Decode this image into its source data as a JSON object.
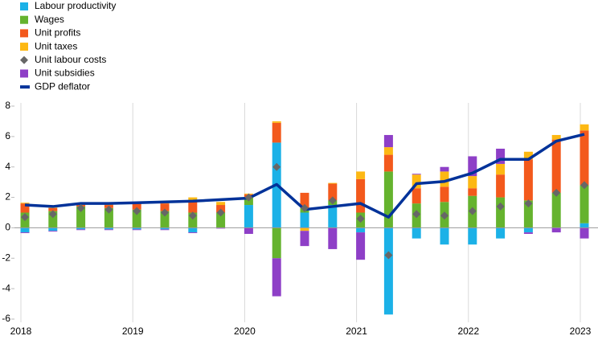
{
  "chart_data": {
    "type": "bar",
    "stacked": true,
    "categories": [
      "2018",
      null,
      null,
      null,
      "2019",
      null,
      null,
      null,
      "2020",
      null,
      null,
      null,
      "2021",
      null,
      null,
      null,
      "2022",
      null,
      null,
      null,
      "2023"
    ],
    "ylim": [
      -6,
      8
    ],
    "yticks": [
      -6,
      -4,
      -2,
      0,
      2,
      4,
      6,
      8
    ],
    "grid": "x",
    "legend": "top-left",
    "series": [
      {
        "name": "Labour productivity",
        "type": "bar",
        "color": "#1bb1e7",
        "values": [
          -0.3,
          -0.2,
          -0.1,
          -0.1,
          -0.1,
          -0.1,
          -0.3,
          0,
          1.5,
          5.6,
          1.0,
          1.5,
          -0.3,
          -5.7,
          -0.7,
          -1.1,
          -1.1,
          -0.7,
          -0.3,
          0,
          0.3
        ]
      },
      {
        "name": "Wages",
        "type": "bar",
        "color": "#65b32e",
        "values": [
          1.0,
          1.1,
          1.4,
          1.3,
          1.2,
          1.1,
          1.0,
          1.0,
          0.5,
          -2.0,
          0.3,
          0.3,
          1.0,
          3.7,
          1.6,
          1.7,
          2.1,
          2.0,
          1.8,
          2.3,
          2.5
        ]
      },
      {
        "name": "Unit profits",
        "type": "bar",
        "color": "#f3591c",
        "values": [
          0.6,
          0.2,
          0.1,
          0.2,
          0.4,
          0.5,
          0.8,
          0.5,
          0.2,
          1.3,
          1.0,
          1.1,
          2.2,
          1.1,
          1.0,
          1.0,
          0.5,
          1.5,
          2.7,
          3.5,
          3.6
        ]
      },
      {
        "name": "Unit taxes",
        "type": "bar",
        "color": "#fdb813",
        "values": [
          0.05,
          0.05,
          0.1,
          0.05,
          0.05,
          0.05,
          0.2,
          0.2,
          0.05,
          0.1,
          -0.2,
          0.05,
          0.5,
          0.5,
          0.9,
          1.0,
          0.8,
          0.7,
          0.5,
          0.3,
          0.4
        ]
      },
      {
        "name": "Unit labour costs",
        "type": "scatter",
        "color": "#676767",
        "values": [
          0.7,
          0.9,
          1.3,
          1.2,
          1.1,
          1.0,
          0.8,
          1.0,
          2.0,
          4.0,
          1.3,
          1.8,
          0.6,
          -1.8,
          0.9,
          0.8,
          1.1,
          1.4,
          1.6,
          2.3,
          2.8
        ]
      },
      {
        "name": "Unit subsidies",
        "type": "bar",
        "color": "#8e3fc7",
        "values": [
          -0.05,
          -0.05,
          -0.05,
          -0.05,
          -0.05,
          -0.05,
          -0.05,
          -0.05,
          -0.4,
          -2.5,
          -1.0,
          -1.4,
          -1.8,
          0.8,
          0.05,
          0.3,
          1.3,
          1.0,
          -0.1,
          -0.3,
          -0.7
        ]
      },
      {
        "name": "GDP deflator",
        "type": "line",
        "color": "#003299",
        "values": [
          1.5,
          1.4,
          1.6,
          1.6,
          1.65,
          1.7,
          1.75,
          1.85,
          1.95,
          2.85,
          1.2,
          1.4,
          1.6,
          0.7,
          2.9,
          3.05,
          3.6,
          4.5,
          4.5,
          5.7,
          6.15
        ]
      }
    ]
  }
}
